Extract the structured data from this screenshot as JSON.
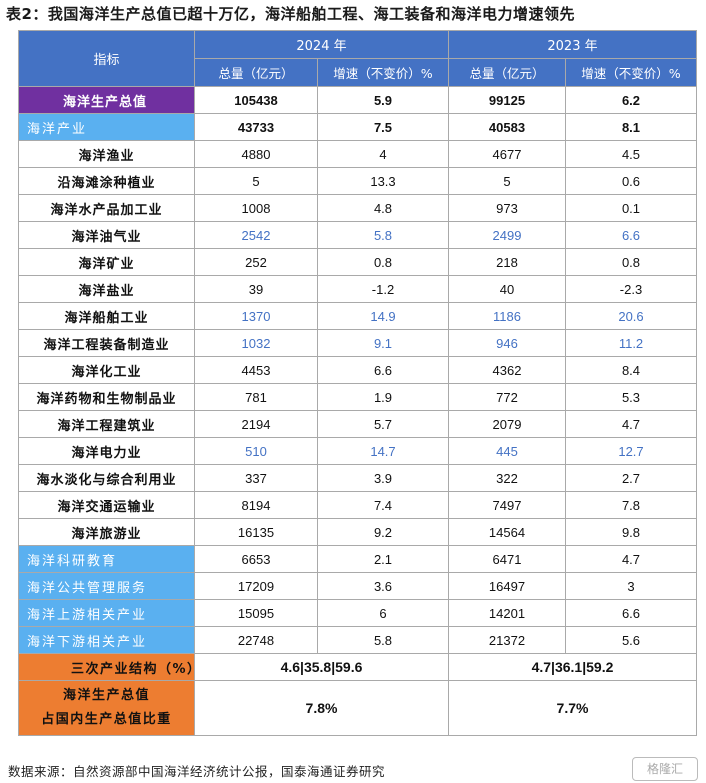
{
  "title": "表2：我国海洋生产总值已超十万亿，海洋船舶工程、海工装备和海洋电力增速领先",
  "header": {
    "indicator": "指标",
    "year_2024": "2024 年",
    "year_2023": "2023 年",
    "total_label": "总量（亿元）",
    "growth_label": "增速（不变价）%"
  },
  "rows": [
    {
      "label": "海洋生产总值",
      "v2024": "105438",
      "g2024": "5.9",
      "v2023": "99125",
      "g2023": "6.2"
    },
    {
      "label": "海洋产业",
      "v2024": "43733",
      "g2024": "7.5",
      "v2023": "40583",
      "g2023": "8.1"
    },
    {
      "label": "海洋渔业",
      "v2024": "4880",
      "g2024": "4",
      "v2023": "4677",
      "g2023": "4.5"
    },
    {
      "label": "沿海滩涂种植业",
      "v2024": "5",
      "g2024": "13.3",
      "v2023": "5",
      "g2023": "0.6"
    },
    {
      "label": "海洋水产品加工业",
      "v2024": "1008",
      "g2024": "4.8",
      "v2023": "973",
      "g2023": "0.1"
    },
    {
      "label": "海洋油气业",
      "v2024": "2542",
      "g2024": "5.8",
      "v2023": "2499",
      "g2023": "6.6"
    },
    {
      "label": "海洋矿业",
      "v2024": "252",
      "g2024": "0.8",
      "v2023": "218",
      "g2023": "0.8"
    },
    {
      "label": "海洋盐业",
      "v2024": "39",
      "g2024": "-1.2",
      "v2023": "40",
      "g2023": "-2.3"
    },
    {
      "label": "海洋船舶工业",
      "v2024": "1370",
      "g2024": "14.9",
      "v2023": "1186",
      "g2023": "20.6"
    },
    {
      "label": "海洋工程装备制造业",
      "v2024": "1032",
      "g2024": "9.1",
      "v2023": "946",
      "g2023": "11.2"
    },
    {
      "label": "海洋化工业",
      "v2024": "4453",
      "g2024": "6.6",
      "v2023": "4362",
      "g2023": "8.4"
    },
    {
      "label": "海洋药物和生物制品业",
      "v2024": "781",
      "g2024": "1.9",
      "v2023": "772",
      "g2023": "5.3"
    },
    {
      "label": "海洋工程建筑业",
      "v2024": "2194",
      "g2024": "5.7",
      "v2023": "2079",
      "g2023": "4.7"
    },
    {
      "label": "海洋电力业",
      "v2024": "510",
      "g2024": "14.7",
      "v2023": "445",
      "g2023": "12.7"
    },
    {
      "label": "海水淡化与综合利用业",
      "v2024": "337",
      "g2024": "3.9",
      "v2023": "322",
      "g2023": "2.7"
    },
    {
      "label": "海洋交通运输业",
      "v2024": "8194",
      "g2024": "7.4",
      "v2023": "7497",
      "g2023": "7.8"
    },
    {
      "label": "海洋旅游业",
      "v2024": "16135",
      "g2024": "9.2",
      "v2023": "14564",
      "g2023": "9.8"
    },
    {
      "label": "海洋科研教育",
      "v2024": "6653",
      "g2024": "2.1",
      "v2023": "6471",
      "g2023": "4.7"
    },
    {
      "label": "海洋公共管理服务",
      "v2024": "17209",
      "g2024": "3.6",
      "v2023": "16497",
      "g2023": "3"
    },
    {
      "label": "海洋上游相关产业",
      "v2024": "15095",
      "g2024": "6",
      "v2023": "14201",
      "g2023": "6.6"
    },
    {
      "label": "海洋下游相关产业",
      "v2024": "22748",
      "g2024": "5.8",
      "v2023": "21372",
      "g2023": "5.6"
    }
  ],
  "structure": {
    "label": "三次产业结构（%）",
    "v2024": "4.6|35.8|59.6",
    "v2023": "4.7|36.1|59.2"
  },
  "share": {
    "label_line1": "海洋生产总值",
    "label_line2": "占国内生产总值比重",
    "v2024": "7.8%",
    "v2023": "7.7%"
  },
  "source": "数据来源：自然资源部中国海洋经济统计公报，国泰海通证券研究",
  "watermark": "格隆汇"
}
